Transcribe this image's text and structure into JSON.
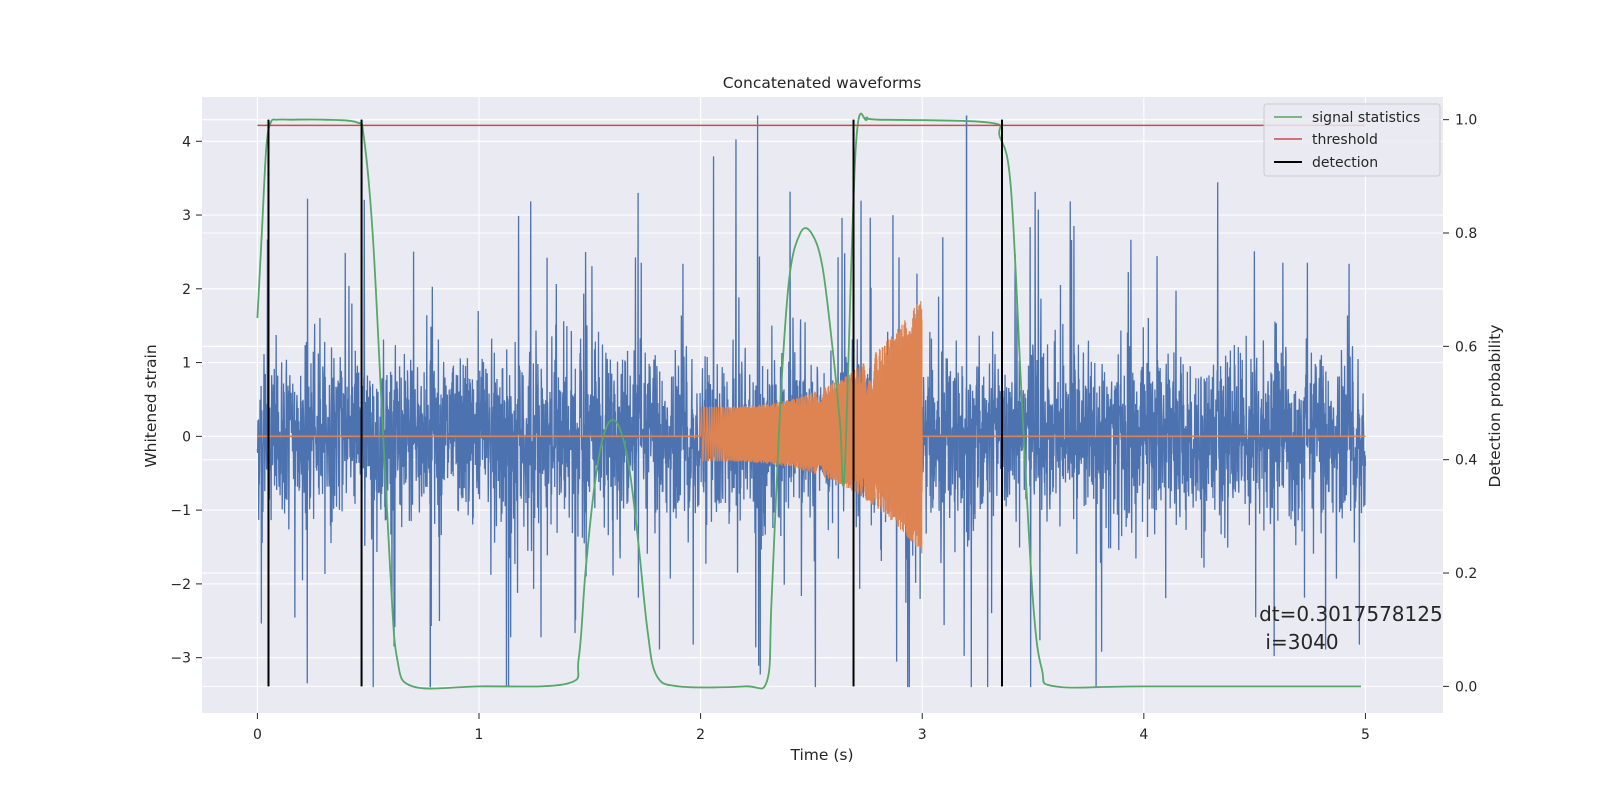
{
  "chart_data": {
    "type": "line",
    "title": "Concatenated waveforms",
    "xlabel": "Time (s)",
    "ylabel": "Whitened strain",
    "y2label": "Detection probability",
    "xlim": [
      -0.25,
      5.35
    ],
    "ylim": [
      -3.75,
      4.6
    ],
    "y2lim": [
      -0.047,
      1.04
    ],
    "xticks": [
      0,
      1,
      2,
      3,
      4,
      5
    ],
    "yticks": [
      -3,
      -2,
      -1,
      0,
      1,
      2,
      3,
      4
    ],
    "y2ticks": [
      0.0,
      0.2,
      0.4,
      0.6,
      0.8,
      1.0
    ],
    "grid": true,
    "legend_position": "top-right",
    "series": [
      {
        "name": "",
        "axis": "left",
        "kind": "noise",
        "color": "#4c72b0",
        "x_range": [
          0,
          5
        ],
        "band_rms": 1.0,
        "spike_range": [
          -3.4,
          4.35
        ]
      },
      {
        "name": "",
        "axis": "left",
        "kind": "chirp",
        "color": "#dd8452",
        "x_range": [
          0,
          5
        ],
        "chirp_start": 2.0,
        "chirp_end": 3.0,
        "amplitude_start": 0.4,
        "amplitude_end": 1.9,
        "amplitude_floor_end": -1.6
      },
      {
        "name": "signal statistics",
        "axis": "right",
        "color": "#55a868",
        "x": [
          0.0,
          0.02,
          0.04,
          0.06,
          0.09,
          0.15,
          0.3,
          0.45,
          0.48,
          0.52,
          0.56,
          0.6,
          0.63,
          0.7,
          1.0,
          1.4,
          1.45,
          1.48,
          1.52,
          1.56,
          1.6,
          1.64,
          1.68,
          1.72,
          1.76,
          1.8,
          1.9,
          2.2,
          2.3,
          2.32,
          2.36,
          2.4,
          2.45,
          2.5,
          2.55,
          2.6,
          2.63,
          2.65,
          2.7,
          2.75,
          2.8,
          3.3,
          3.35,
          3.4,
          3.45,
          3.5,
          3.54,
          3.6,
          4.0,
          4.98
        ],
        "values": [
          0.65,
          0.8,
          0.95,
          0.995,
          1.0,
          1.0,
          1.0,
          0.995,
          0.97,
          0.8,
          0.5,
          0.2,
          0.05,
          0.0,
          0.0,
          0.005,
          0.05,
          0.2,
          0.35,
          0.44,
          0.47,
          0.45,
          0.38,
          0.25,
          0.1,
          0.02,
          0.0,
          0.0,
          0.01,
          0.15,
          0.5,
          0.72,
          0.8,
          0.8,
          0.74,
          0.58,
          0.46,
          0.38,
          0.95,
          1.0,
          1.0,
          0.995,
          0.97,
          0.88,
          0.5,
          0.15,
          0.03,
          0.0,
          0.0,
          0.0
        ]
      },
      {
        "name": "threshold",
        "axis": "right",
        "color": "#c44e52",
        "x": [
          0,
          5
        ],
        "values": [
          0.99,
          0.99
        ]
      },
      {
        "name": "detection",
        "axis": "right",
        "kind": "vlines",
        "color": "#000000",
        "x": [
          0.05,
          0.47,
          2.69,
          3.36
        ],
        "ymin": 0.0,
        "ymax": 1.0
      }
    ],
    "annotation": {
      "line1": "dt=0.3017578125",
      "line2": " i=3040",
      "x": 4.52,
      "y1": -2.5,
      "y2": -2.88
    }
  },
  "colors": {
    "background": "#eaeaf2",
    "grid": "#ffffff",
    "noise": "#4c72b0",
    "chirp": "#dd8452",
    "signal": "#55a868",
    "threshold": "#c44e52",
    "detection": "#000000"
  }
}
